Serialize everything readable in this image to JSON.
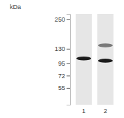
{
  "chart_data": {
    "type": "western_blot",
    "y_label": "kDa",
    "log": "y",
    "ylim": [
      38,
      279
    ],
    "yticks": [
      250,
      130,
      95,
      72,
      55
    ],
    "categories": [
      "1",
      "2"
    ],
    "values": [
      [
        105
      ],
      [
        100,
        140
      ]
    ],
    "colors": [
      [
        "#1c1c1c"
      ],
      [
        "#1c1c1c",
        "#7a7a7a"
      ]
    ]
  }
}
